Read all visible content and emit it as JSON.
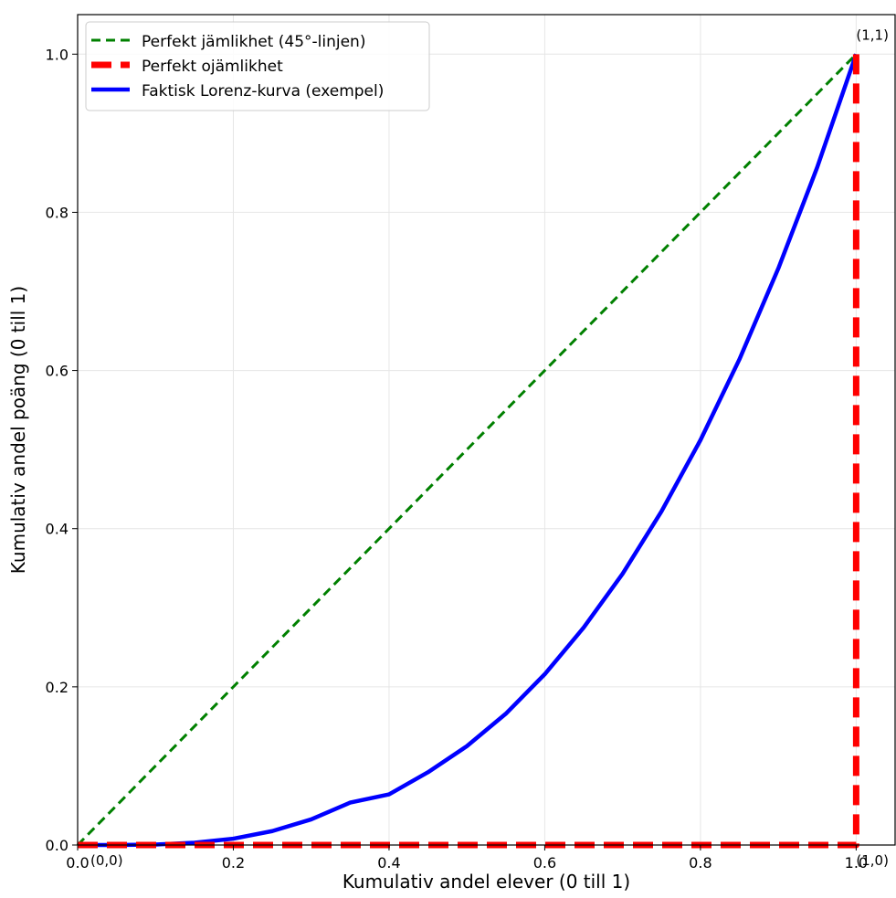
{
  "chart_data": {
    "type": "line",
    "title": "",
    "xlabel": "Kumulativ andel elever (0 till 1)",
    "ylabel": "Kumulativ andel poäng (0 till 1)",
    "xlim": [
      0.0,
      1.05
    ],
    "ylim": [
      0.0,
      1.05
    ],
    "x_ticks": [
      0.0,
      0.2,
      0.4,
      0.6,
      0.8,
      1.0
    ],
    "x_tick_labels": [
      "0.0",
      "0.2",
      "0.4",
      "0.6",
      "0.8",
      "1.0"
    ],
    "y_ticks": [
      0.0,
      0.2,
      0.4,
      0.6,
      0.8,
      1.0
    ],
    "y_tick_labels": [
      "0.0",
      "0.2",
      "0.4",
      "0.6",
      "0.8",
      "1.0"
    ],
    "grid": true,
    "legend_position": "top-left",
    "series": [
      {
        "name": "Perfekt jämlikhet (45°-linjen)",
        "style": "dashed",
        "color": "#008000",
        "x": [
          0.0,
          1.0
        ],
        "y": [
          0.0,
          1.0
        ]
      },
      {
        "name": "Perfekt ojämlikhet",
        "style": "dashed-thick",
        "color": "#ff0000",
        "x": [
          0.0,
          1.0,
          1.0
        ],
        "y": [
          0.0,
          0.0,
          1.0
        ]
      },
      {
        "name": "Faktisk Lorenz-kurva (exempel)",
        "style": "solid",
        "color": "#0000ff",
        "x": [
          0.0,
          0.05,
          0.1,
          0.15,
          0.2,
          0.25,
          0.3,
          0.35,
          0.4,
          0.45,
          0.5,
          0.55,
          0.6,
          0.65,
          0.7,
          0.75,
          0.8,
          0.85,
          0.9,
          0.95,
          1.0
        ],
        "y": [
          0.0,
          0.0,
          0.0006,
          0.0029,
          0.008,
          0.0176,
          0.0324,
          0.0536,
          0.064,
          0.092,
          0.125,
          0.166,
          0.216,
          0.275,
          0.343,
          0.422,
          0.512,
          0.614,
          0.729,
          0.857,
          1.0
        ]
      }
    ],
    "annotations": [
      {
        "text": "(0,0)",
        "x": 0.0,
        "y": 0.0
      },
      {
        "text": "(1,0)",
        "x": 1.0,
        "y": 0.0
      },
      {
        "text": "(1,1)",
        "x": 1.0,
        "y": 1.0
      }
    ]
  }
}
